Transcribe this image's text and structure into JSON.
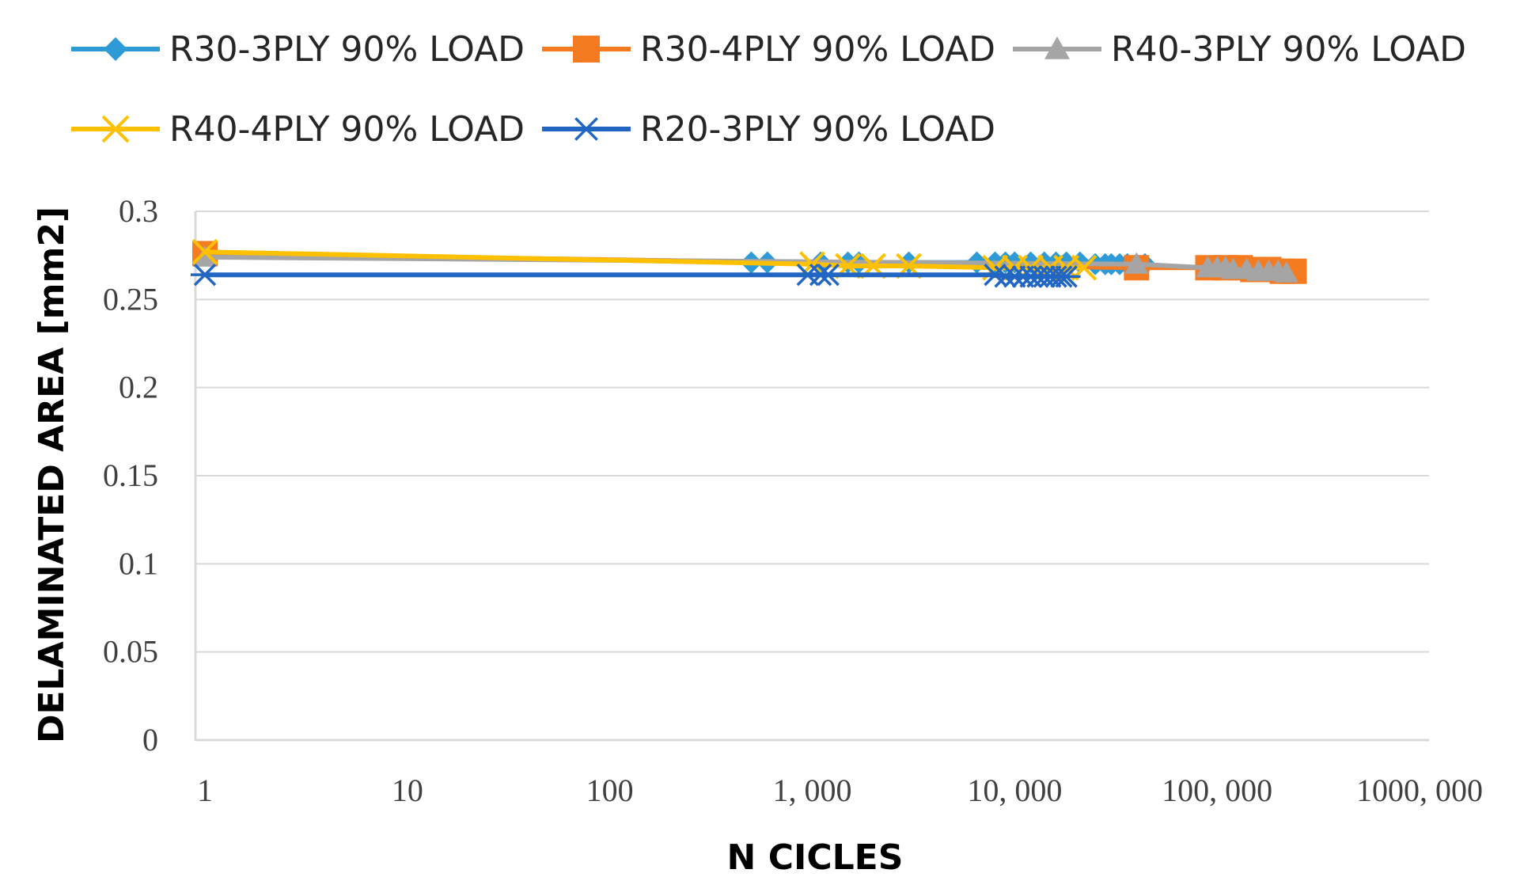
{
  "chart_data": {
    "type": "line",
    "title": "",
    "xlabel": "N CICLES",
    "ylabel": "DELAMINATED AREA [mm2]",
    "x_scale": "log",
    "xlim": [
      1,
      1000000
    ],
    "ylim": [
      0,
      0.3
    ],
    "x_tick_values": [
      1,
      10,
      100,
      1000,
      10000,
      100000,
      1000000
    ],
    "x_tick_labels": [
      "1",
      "10",
      "100",
      "1, 000",
      "10, 000",
      "100, 000",
      "1000, 000"
    ],
    "y_tick_values": [
      0,
      0.05,
      0.1,
      0.15,
      0.2,
      0.25,
      0.3
    ],
    "y_tick_labels": [
      "0",
      "0.05",
      "0.1",
      "0.15",
      "0.2",
      "0.25",
      "0.3"
    ],
    "grid": "horizontal",
    "legend_position": "top",
    "series": [
      {
        "name": "R30-3PLY 90% LOAD",
        "color": "#2E9BD6",
        "marker": "diamond",
        "x": [
          1,
          500,
          600,
          1100,
          1500,
          1700,
          3000,
          6500,
          8000,
          9000,
          10000,
          12000,
          14000,
          16000,
          18000,
          21000,
          25000,
          28000,
          30000,
          33000,
          36000,
          40000,
          44000
        ],
        "y": [
          0.276,
          0.271,
          0.271,
          0.271,
          0.271,
          0.271,
          0.271,
          0.271,
          0.271,
          0.271,
          0.271,
          0.271,
          0.271,
          0.271,
          0.271,
          0.271,
          0.27,
          0.27,
          0.27,
          0.27,
          0.27,
          0.27,
          0.27
        ]
      },
      {
        "name": "R30-4PLY 90% LOAD",
        "color": "#F47B20",
        "marker": "square",
        "x": [
          1,
          40000,
          90000,
          110000,
          130000,
          150000,
          180000,
          210000,
          240000
        ],
        "y": [
          0.276,
          0.268,
          0.268,
          0.268,
          0.268,
          0.267,
          0.267,
          0.266,
          0.266
        ]
      },
      {
        "name": "R40-3PLY 90% LOAD",
        "color": "#A5A5A5",
        "marker": "triangle",
        "x": [
          1,
          40000,
          90000,
          100000,
          110000,
          120000,
          140000,
          160000,
          180000,
          200000,
          220000
        ],
        "y": [
          0.274,
          0.27,
          0.268,
          0.268,
          0.268,
          0.267,
          0.267,
          0.266,
          0.266,
          0.266,
          0.265
        ]
      },
      {
        "name": "R40-4PLY 90% LOAD",
        "color": "#FFC000",
        "marker": "x",
        "x": [
          1,
          1000,
          1500,
          2000,
          3000,
          8000,
          10000,
          12000,
          15000,
          18000,
          22000
        ],
        "y": [
          0.277,
          0.27,
          0.269,
          0.269,
          0.269,
          0.268,
          0.268,
          0.268,
          0.268,
          0.268,
          0.268
        ]
      },
      {
        "name": "R20-3PLY 90% LOAD",
        "color": "#2266C4",
        "marker": "asterisk",
        "x": [
          1,
          950,
          1100,
          1200,
          8000,
          9000,
          10000,
          11000,
          12000,
          13000,
          14000,
          15000,
          16000,
          17000,
          18000
        ],
        "y": [
          0.264,
          0.264,
          0.264,
          0.264,
          0.264,
          0.263,
          0.263,
          0.263,
          0.263,
          0.263,
          0.263,
          0.263,
          0.263,
          0.263,
          0.263
        ]
      }
    ]
  }
}
